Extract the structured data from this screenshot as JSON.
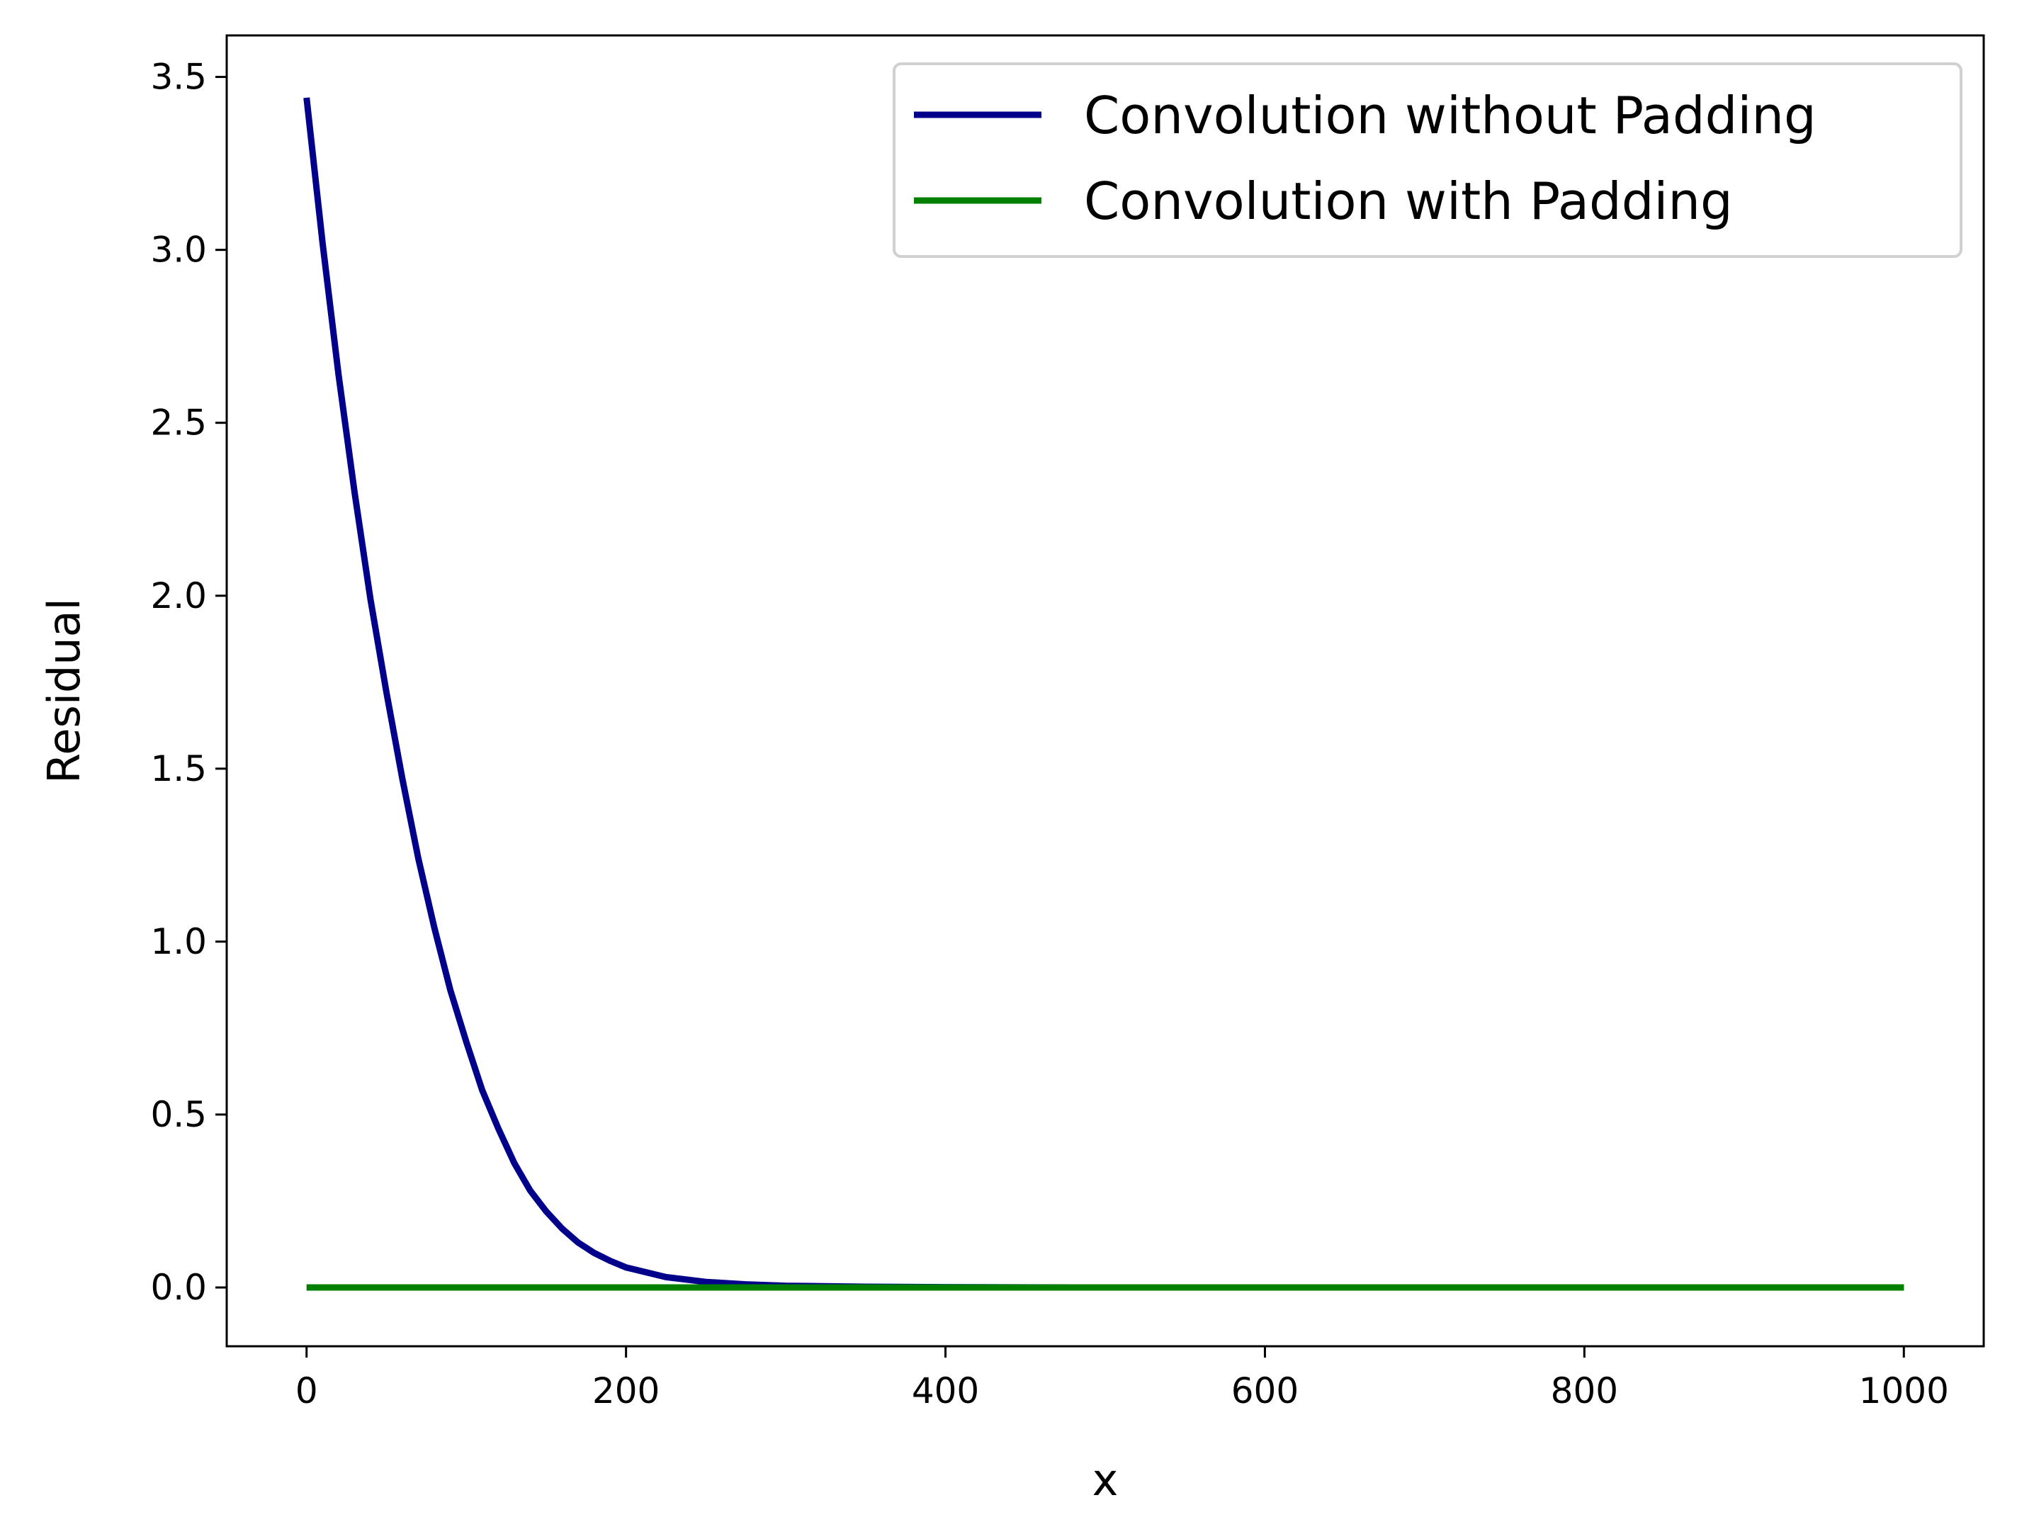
{
  "chart_data": {
    "type": "line",
    "title": "",
    "xlabel": "x",
    "ylabel": "Residual",
    "xlim": [
      -50,
      1050
    ],
    "ylim": [
      -0.17,
      3.62
    ],
    "x_ticks": [
      0,
      200,
      400,
      600,
      800,
      1000
    ],
    "x_tick_labels": [
      "0",
      "200",
      "400",
      "600",
      "800",
      "1000"
    ],
    "y_ticks": [
      0.0,
      0.5,
      1.0,
      1.5,
      2.0,
      2.5,
      3.0,
      3.5
    ],
    "y_tick_labels": [
      "0.0",
      "0.5",
      "1.0",
      "1.5",
      "2.0",
      "2.5",
      "3.0",
      "3.5"
    ],
    "grid": false,
    "legend_position": "top-right",
    "series": [
      {
        "name": "Convolution without Padding",
        "color": "#00008b",
        "x": [
          0,
          10,
          20,
          30,
          40,
          50,
          60,
          70,
          80,
          90,
          100,
          110,
          120,
          130,
          140,
          150,
          160,
          170,
          180,
          190,
          200,
          225,
          250,
          275,
          300,
          350,
          400,
          450,
          500,
          600,
          700,
          800,
          900,
          1000
        ],
        "y": [
          3.44,
          3.02,
          2.64,
          2.3,
          1.99,
          1.72,
          1.47,
          1.24,
          1.04,
          0.86,
          0.71,
          0.57,
          0.46,
          0.36,
          0.28,
          0.22,
          0.17,
          0.13,
          0.1,
          0.077,
          0.058,
          0.03,
          0.016,
          0.009,
          0.005,
          0.002,
          0.0008,
          0.0003,
          0.0001,
          0.0,
          0.0,
          0.0,
          0.0,
          0.0
        ]
      },
      {
        "name": "Convolution with Padding",
        "color": "#008000",
        "x": [
          0,
          1000
        ],
        "y": [
          0.0,
          0.0
        ]
      }
    ]
  }
}
